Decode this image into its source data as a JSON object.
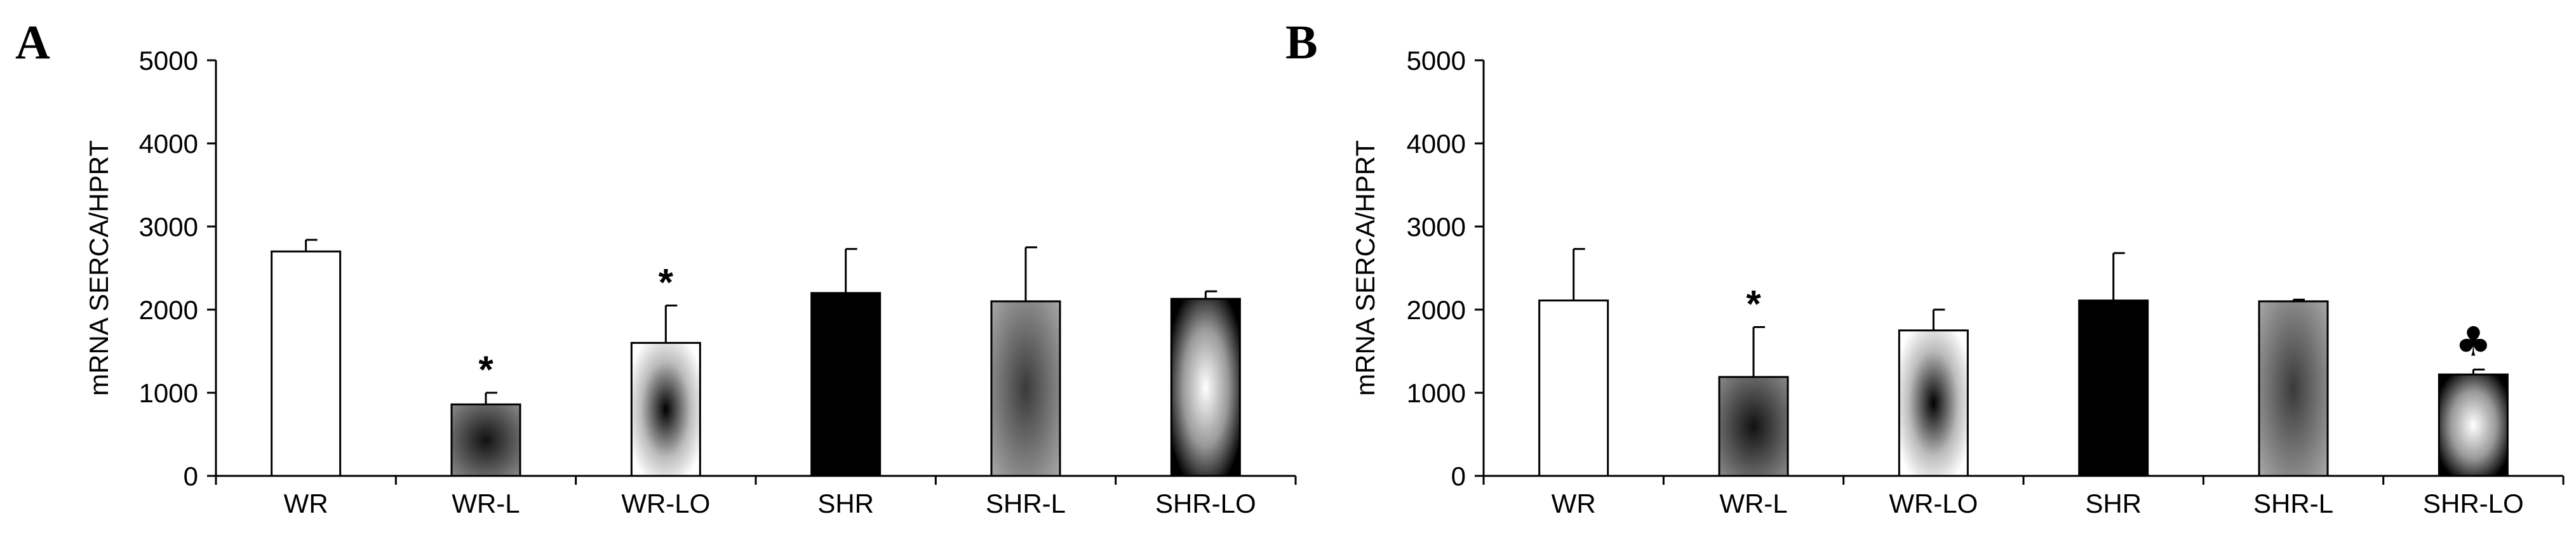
{
  "chart_data": [
    {
      "type": "bar",
      "panel_label": "A",
      "ylabel": "mRNA SERCA/HPRT",
      "xlabel": "",
      "ylim": [
        0,
        5000
      ],
      "yticks": [
        0,
        1000,
        2000,
        3000,
        4000,
        5000
      ],
      "categories": [
        "WR",
        "WR-L",
        "WR-LO",
        "SHR",
        "SHR-L",
        "SHR-LO"
      ],
      "values": [
        2700,
        860,
        1600,
        2200,
        2100,
        2130
      ],
      "errors": [
        140,
        140,
        450,
        530,
        650,
        90
      ],
      "annotations": [
        "",
        "*",
        "*",
        "",
        "",
        ""
      ],
      "fills": [
        "white",
        "dark-gradient",
        "light-gradient",
        "black",
        "gray-gradient",
        "silver-gradient"
      ]
    },
    {
      "type": "bar",
      "panel_label": "B",
      "ylabel": "mRNA SERCA/HPRT",
      "xlabel": "",
      "ylim": [
        0,
        5000
      ],
      "yticks": [
        0,
        1000,
        2000,
        3000,
        4000,
        5000
      ],
      "categories": [
        "WR",
        "WR-L",
        "WR-LO",
        "SHR",
        "SHR-L",
        "SHR-LO"
      ],
      "values": [
        2110,
        1190,
        1750,
        2110,
        2100,
        1220
      ],
      "errors": [
        620,
        600,
        250,
        570,
        20,
        60
      ],
      "annotations": [
        "",
        "*",
        "",
        "",
        "",
        "♣"
      ],
      "fills": [
        "white",
        "dark-gradient",
        "light-gradient",
        "black",
        "gray-gradient",
        "silver-gradient"
      ]
    }
  ]
}
